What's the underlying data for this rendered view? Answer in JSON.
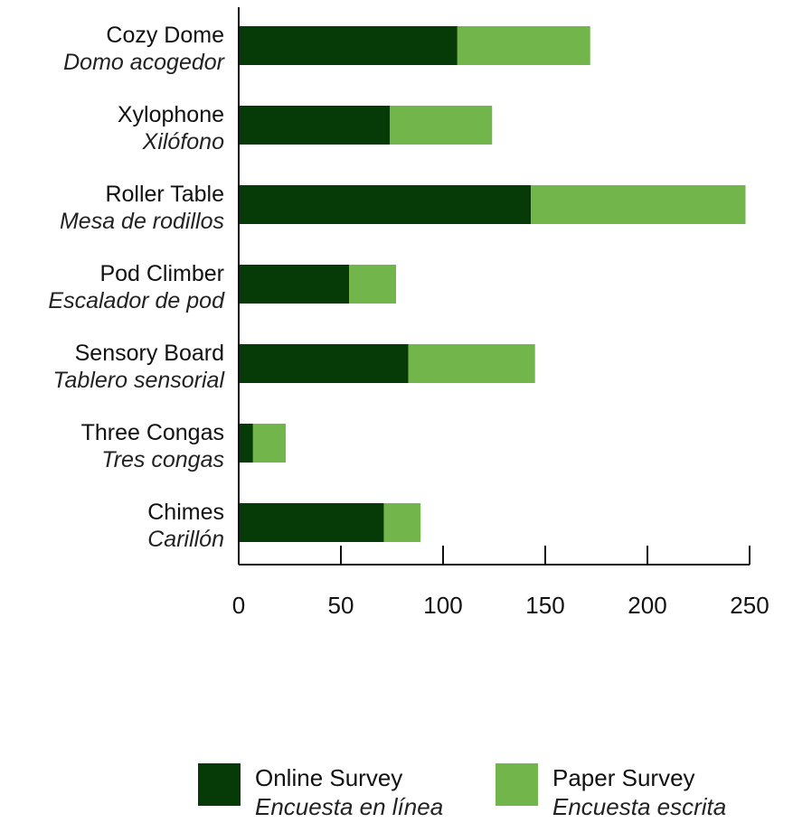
{
  "colors": {
    "online": "#063a06",
    "paper": "#72b54a",
    "axis": "#111111"
  },
  "chart_data": {
    "type": "bar",
    "orientation": "horizontal",
    "stacked": true,
    "categories": [
      {
        "en": "Cozy Dome",
        "es": "Domo acogedor"
      },
      {
        "en": "Xylophone",
        "es": "Xilófono"
      },
      {
        "en": "Roller Table",
        "es": "Mesa de rodillos"
      },
      {
        "en": "Pod Climber",
        "es": "Escalador de pod"
      },
      {
        "en": "Sensory Board",
        "es": "Tablero sensorial"
      },
      {
        "en": "Three Congas",
        "es": "Tres congas"
      },
      {
        "en": "Chimes",
        "es": "Carillón"
      }
    ],
    "series": [
      {
        "key": "online",
        "name": "Online Survey",
        "name_es": "Encuesta en línea",
        "values": [
          107,
          74,
          143,
          54,
          83,
          7,
          71
        ]
      },
      {
        "key": "paper",
        "name": "Paper Survey",
        "name_es": "Encuesta escrita",
        "values": [
          65,
          50,
          105,
          23,
          62,
          16,
          18
        ]
      }
    ],
    "xlim": [
      0,
      250
    ],
    "xticks": [
      0,
      50,
      100,
      150,
      200,
      250
    ],
    "grid": false,
    "legend_position": "bottom"
  }
}
